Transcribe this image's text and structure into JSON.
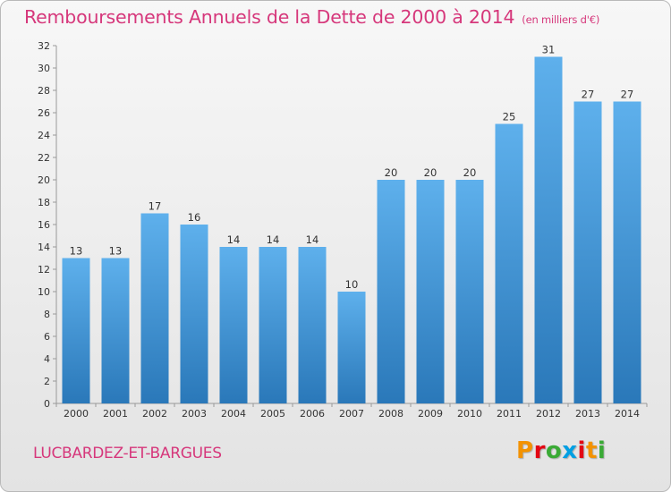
{
  "header": {
    "title": "Remboursements Annuels de la Dette de 2000 à 2014",
    "unit": "(en milliers d'€)"
  },
  "footer": {
    "commune": "LUCBARDEZ-ET-BARGUES",
    "logo": "Proxiti",
    "logo_colors": [
      "#f39200",
      "#e30613",
      "#3aaa35",
      "#009fe3",
      "#e30613",
      "#f39200",
      "#3aaa35"
    ]
  },
  "colors": {
    "title": "#d6377b",
    "bar_top": "#5eb0ec",
    "bar_bottom": "#2a78b9"
  },
  "chart_data": {
    "type": "bar",
    "title": "Remboursements Annuels de la Dette de 2000 à 2014",
    "xlabel": "",
    "ylabel": "",
    "categories": [
      "2000",
      "2001",
      "2002",
      "2003",
      "2004",
      "2005",
      "2006",
      "2007",
      "2008",
      "2009",
      "2010",
      "2011",
      "2012",
      "2013",
      "2014"
    ],
    "values": [
      13,
      13,
      17,
      16,
      14,
      14,
      14,
      10,
      20,
      20,
      20,
      25,
      31,
      27,
      27
    ],
    "ylim": [
      0,
      32
    ],
    "yticks": [
      0,
      2,
      4,
      6,
      8,
      10,
      12,
      14,
      16,
      18,
      20,
      22,
      24,
      26,
      28,
      30,
      32
    ],
    "grid": false,
    "show_data_labels": true
  }
}
